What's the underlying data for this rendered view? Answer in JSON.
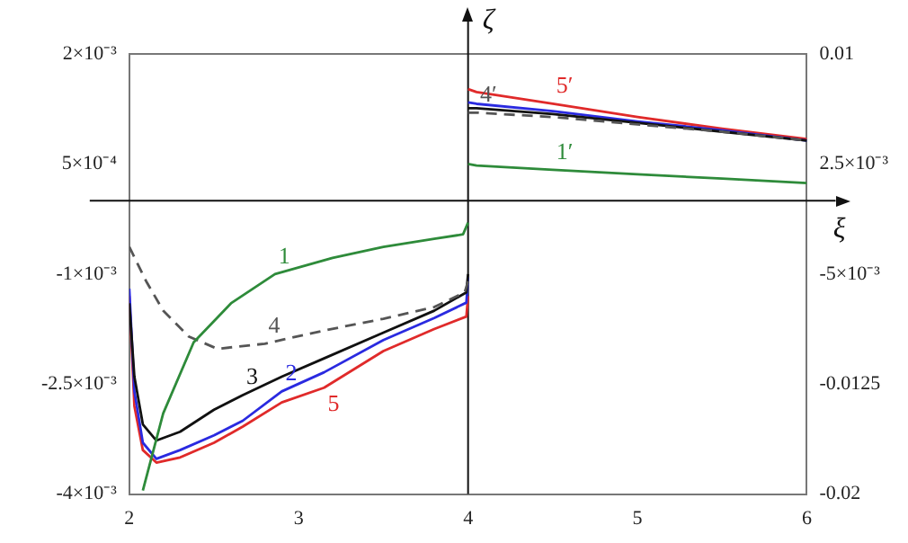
{
  "chart_data": {
    "type": "line",
    "xlim": [
      2,
      6
    ],
    "xticks": [
      2,
      3,
      4,
      5,
      6
    ],
    "ylim": [
      -0.004,
      0.002
    ],
    "yticks": [
      {
        "value": 0.002,
        "label": "2×10⁻³"
      },
      {
        "value": 0.0005,
        "label": "5×10⁻⁴"
      },
      {
        "value": -0.001,
        "label": "-1×10⁻³"
      },
      {
        "value": -0.0025,
        "label": "-2.5×10⁻³"
      },
      {
        "value": -0.004,
        "label": "-4×10⁻³"
      }
    ],
    "y2lim": [
      -0.02,
      0.01
    ],
    "y2ticks": [
      0.01,
      {
        "value": 0.0025,
        "label": "2.5×10⁻³"
      },
      {
        "value": -0.005,
        "label": "-5×10⁻³"
      },
      -0.0125,
      -0.02
    ],
    "grid": false,
    "legend": false,
    "marker": "none",
    "ref_lines": [
      {
        "axis": "x",
        "value": 4,
        "label": "ζ"
      },
      {
        "axis": "y",
        "value": 0,
        "label": "ξ"
      }
    ],
    "series": [
      {
        "name": "1",
        "color": "#2e8b3a",
        "x": [
          2.08,
          2.2,
          2.38,
          2.6,
          2.86,
          3.2,
          3.5,
          3.8,
          3.97,
          4.0
        ],
        "values": [
          -0.00395,
          -0.0029,
          -0.00193,
          -0.0014,
          -0.001,
          -0.00078,
          -0.00063,
          -0.00052,
          -0.00046,
          -0.0003
        ]
      },
      {
        "name": "4",
        "color": "#555555",
        "line_style": "dashed",
        "x": [
          2,
          2.1,
          2.2,
          2.35,
          2.52,
          2.8,
          3.15,
          3.5,
          3.8,
          3.98,
          4.0
        ],
        "values": [
          -0.00063,
          -0.0011,
          -0.0015,
          -0.00185,
          -0.00202,
          -0.00195,
          -0.00177,
          -0.00161,
          -0.00145,
          -0.00125,
          -0.0011
        ]
      },
      {
        "name": "3",
        "color": "#111111",
        "x": [
          2,
          2.03,
          2.08,
          2.16,
          2.3,
          2.5,
          2.67,
          2.9,
          3.15,
          3.5,
          3.8,
          3.99,
          4.0
        ],
        "values": [
          -0.0014,
          -0.0024,
          -0.00305,
          -0.00327,
          -0.00315,
          -0.00285,
          -0.00265,
          -0.0024,
          -0.00215,
          -0.0018,
          -0.0015,
          -0.00125,
          -0.001
        ]
      },
      {
        "name": "2",
        "color": "#2a2ae0",
        "x": [
          2,
          2.03,
          2.08,
          2.16,
          2.3,
          2.5,
          2.67,
          2.9,
          3.15,
          3.5,
          3.8,
          3.99,
          4.0
        ],
        "values": [
          -0.0012,
          -0.0026,
          -0.0033,
          -0.00352,
          -0.0034,
          -0.0032,
          -0.003,
          -0.0026,
          -0.00234,
          -0.0019,
          -0.0016,
          -0.00139,
          -0.00104
        ]
      },
      {
        "name": "5",
        "color": "#e02a2a",
        "x": [
          2,
          2.03,
          2.08,
          2.16,
          2.3,
          2.5,
          2.67,
          2.9,
          3.15,
          3.5,
          3.8,
          3.99,
          4.0
        ],
        "values": [
          -0.0013,
          -0.0028,
          -0.0034,
          -0.00357,
          -0.0035,
          -0.0033,
          -0.00308,
          -0.00275,
          -0.00255,
          -0.00205,
          -0.00175,
          -0.00158,
          -0.0013
        ]
      },
      {
        "name": "1′",
        "color": "#2e8b3a",
        "axis": "y2",
        "x": [
          4,
          4.05,
          4.5,
          5,
          5.5,
          6
        ],
        "values": [
          0.0025,
          0.0024,
          0.0021,
          0.0018,
          0.0015,
          0.0012
        ]
      },
      {
        "name": "4′",
        "color": "#555555",
        "line_style": "dashed",
        "axis": "y2",
        "x": [
          4,
          4.05,
          4.5,
          5,
          5.5,
          6
        ],
        "values": [
          0.006,
          0.006,
          0.0057,
          0.0052,
          0.0047,
          0.0041
        ]
      },
      {
        "color": "#111111",
        "axis": "y2",
        "x": [
          4,
          4.05,
          4.5,
          5,
          5.5,
          6
        ],
        "values": [
          0.0063,
          0.0063,
          0.0059,
          0.0053,
          0.0047,
          0.0041
        ]
      },
      {
        "color": "#2a2ae0",
        "axis": "y2",
        "x": [
          4,
          4.05,
          4.5,
          5,
          5.5,
          6
        ],
        "values": [
          0.0067,
          0.0066,
          0.0061,
          0.0054,
          0.0048,
          0.0041
        ]
      },
      {
        "name": "5′",
        "color": "#e02a2a",
        "axis": "y2",
        "x": [
          4,
          4.05,
          4.5,
          5,
          5.5,
          6
        ],
        "values": [
          0.0076,
          0.0074,
          0.0066,
          0.0057,
          0.0049,
          0.0042
        ]
      }
    ]
  }
}
